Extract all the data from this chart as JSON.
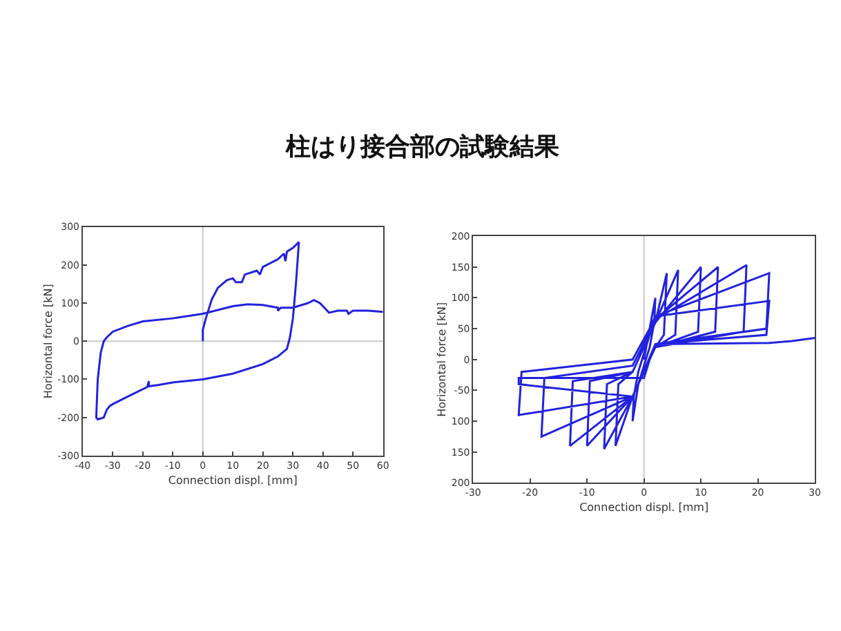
{
  "chart_data": [
    {
      "type": "line",
      "title": "柱はり接合部の試験結果",
      "xlabel": "Connection displ. [mm]",
      "ylabel": "Horizontal force [kN]",
      "xlim": [
        -40,
        60
      ],
      "xticks": [
        -40,
        -30,
        -20,
        -10,
        0,
        10,
        20,
        30,
        40,
        50,
        60
      ],
      "ylim": [
        -300,
        300
      ],
      "yticks": [
        -300,
        -200,
        -100,
        0,
        100,
        200,
        300
      ],
      "grid": false,
      "marker": "none",
      "line_style": "solid",
      "ref_lines": [
        {
          "axis": "x",
          "value": 0,
          "color": "#c8c8c8"
        },
        {
          "axis": "y",
          "value": 0,
          "color": "#c8c8c8"
        }
      ],
      "series": [
        {
          "color": "#2222dd",
          "x": [
            0,
            0,
            1,
            3,
            5,
            8,
            10,
            11,
            13,
            14,
            18,
            19,
            20,
            25,
            27,
            27.5,
            28,
            30,
            32,
            31,
            30,
            29,
            28,
            25,
            20,
            10,
            0,
            -10,
            -15,
            -18,
            -18,
            -18.5,
            -25,
            -30,
            -31,
            -32,
            -33,
            -35,
            -35.5,
            -35,
            -34,
            -33,
            -32,
            -30,
            -25,
            -20,
            -10,
            0,
            5,
            10,
            15,
            20,
            25,
            25,
            26,
            30,
            35,
            37,
            39,
            42,
            45,
            48,
            48.5,
            50,
            55,
            60
          ],
          "values": [
            0,
            30,
            60,
            110,
            140,
            160,
            165,
            155,
            155,
            175,
            185,
            175,
            195,
            215,
            230,
            210,
            235,
            245,
            260,
            150,
            60,
            10,
            -20,
            -40,
            -60,
            -85,
            -100,
            -108,
            -115,
            -118,
            -105,
            -120,
            -145,
            -165,
            -170,
            -180,
            -200,
            -205,
            -200,
            -100,
            -30,
            0,
            10,
            25,
            40,
            52,
            60,
            72,
            82,
            92,
            97,
            95,
            88,
            80,
            88,
            88,
            100,
            108,
            100,
            75,
            80,
            80,
            72,
            80,
            80,
            77
          ]
        }
      ]
    },
    {
      "type": "line",
      "xlabel": "Connection displ. [mm]",
      "ylabel": "Horizontal force [kN]",
      "xlim": [
        -30,
        30
      ],
      "xticks": [
        -30,
        -20,
        -10,
        0,
        10,
        20,
        30
      ],
      "ylim": [
        -200,
        200
      ],
      "yticks": [
        {
          "value": -200,
          "label": "200"
        },
        {
          "value": -150,
          "label": "150"
        },
        {
          "value": -100,
          "label": "100"
        },
        -50,
        0,
        50,
        100,
        150,
        200
      ],
      "grid": false,
      "marker": "none",
      "line_style": "solid",
      "ref_lines": [
        {
          "axis": "x",
          "value": 0,
          "color": "#c8c8c8"
        }
      ],
      "series": [
        {
          "color": "#2222dd",
          "x": [
            0,
            1,
            2,
            1.8,
            1,
            -1,
            -2,
            -1.8,
            -1,
            1,
            2,
            4,
            3.5,
            2,
            -1,
            -2,
            -5,
            -4.5,
            -2,
            1,
            2,
            6,
            5.5,
            2,
            -1,
            -2,
            -7,
            -6.5,
            -2,
            1,
            2,
            10,
            9.5,
            2,
            -1,
            -2,
            -10,
            -9.5,
            -2,
            1,
            2,
            13,
            12.5,
            2,
            -1,
            -2,
            -13,
            -12.5,
            -2,
            1,
            2,
            18,
            17.5,
            2,
            -1,
            -2,
            -18,
            -17.5,
            -2,
            1,
            2,
            22,
            21.5,
            2,
            -1,
            -2,
            -22,
            -21.5,
            -2,
            1,
            2,
            22,
            21.5,
            2,
            -1,
            -2,
            -22,
            -22,
            0,
            1,
            2,
            22,
            26,
            30
          ],
          "values": [
            0,
            50,
            100,
            60,
            20,
            -40,
            -100,
            -60,
            -20,
            40,
            60,
            140,
            40,
            20,
            -40,
            -60,
            -140,
            -40,
            -20,
            40,
            60,
            145,
            40,
            20,
            -40,
            -60,
            -145,
            -40,
            -20,
            40,
            60,
            150,
            45,
            20,
            -40,
            -60,
            -140,
            -35,
            -20,
            40,
            65,
            150,
            45,
            20,
            -40,
            -60,
            -140,
            -35,
            -20,
            40,
            65,
            153,
            45,
            20,
            -40,
            -60,
            -125,
            -30,
            -10,
            45,
            70,
            140,
            50,
            25,
            -40,
            -60,
            -90,
            -20,
            0,
            50,
            70,
            95,
            40,
            25,
            -40,
            -60,
            -40,
            -30,
            -30,
            0,
            25,
            27,
            30,
            35
          ]
        }
      ]
    }
  ]
}
